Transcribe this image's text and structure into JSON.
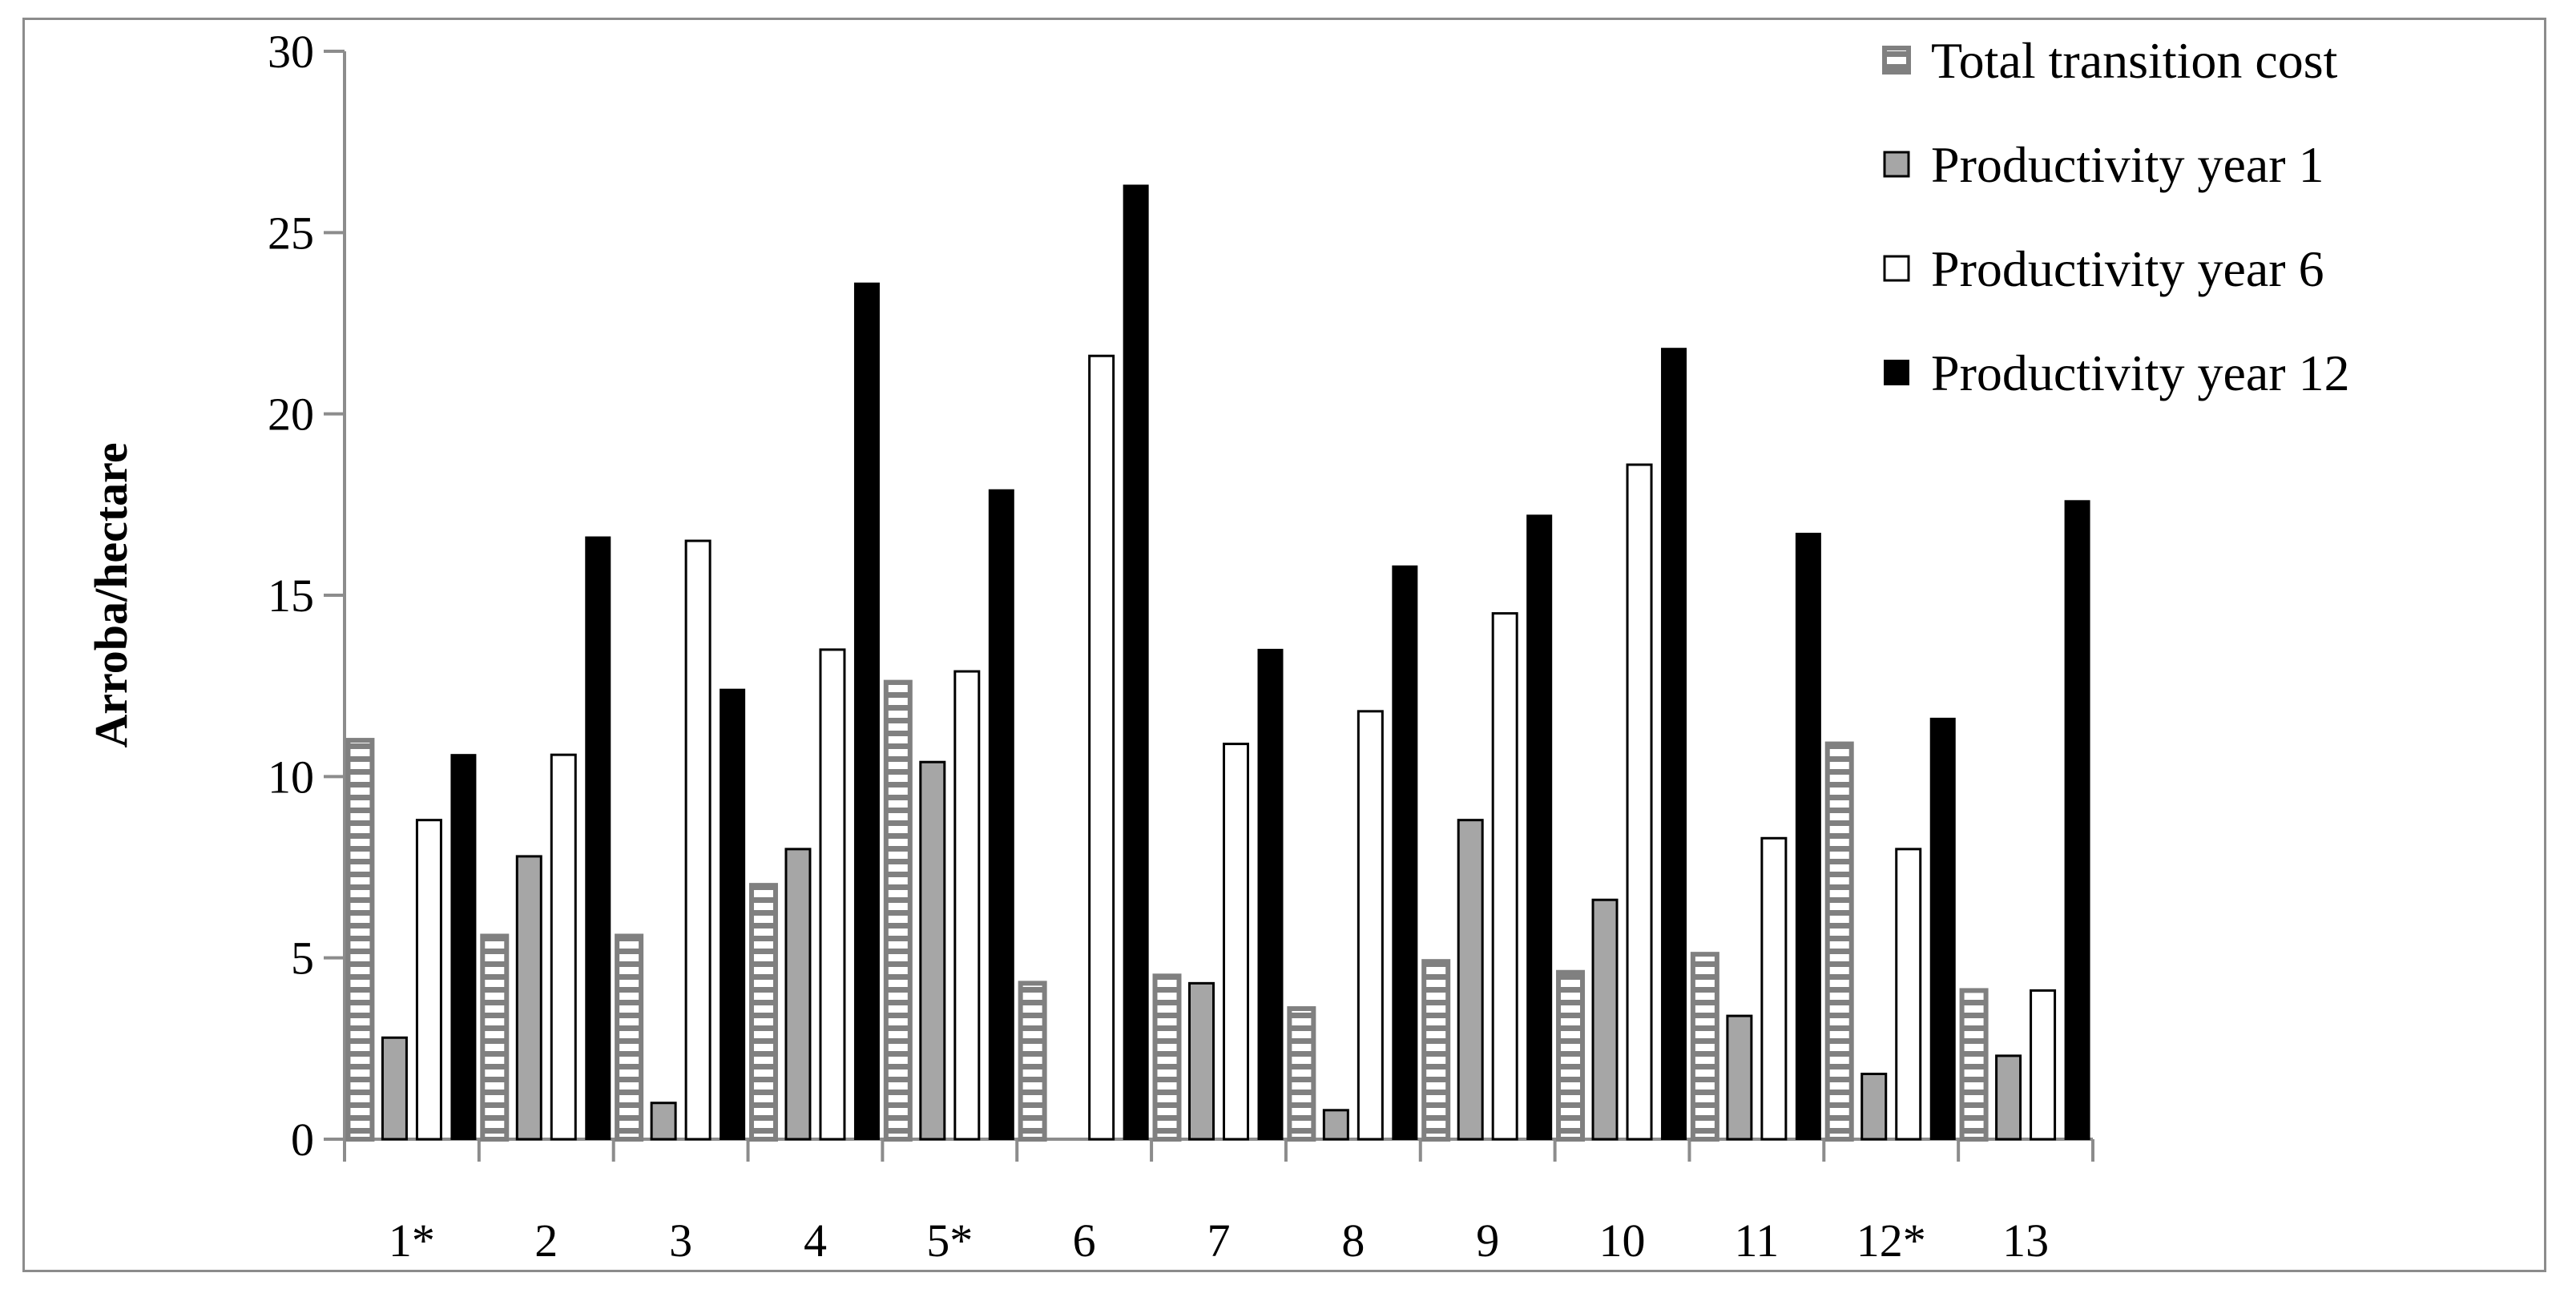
{
  "chart_data": {
    "type": "bar",
    "title": "",
    "xlabel": "",
    "ylabel": "Arroba/hectare",
    "ylim": [
      0,
      30
    ],
    "yticks": [
      0,
      5,
      10,
      15,
      20,
      25,
      30
    ],
    "grid": false,
    "legend_position": "top-right",
    "categories": [
      "1*",
      "2",
      "3",
      "4",
      "5*",
      "6",
      "7",
      "8",
      "9",
      "10",
      "11",
      "12*",
      "13"
    ],
    "series": [
      {
        "name": "Total transition cost",
        "style": "hatched",
        "color": "#808080",
        "values": [
          11.0,
          5.6,
          5.6,
          7.0,
          12.6,
          4.3,
          4.5,
          3.6,
          4.9,
          4.6,
          5.1,
          10.9,
          4.1
        ]
      },
      {
        "name": "Productivity year 1",
        "style": "gray",
        "color": "#a6a6a6",
        "values": [
          2.8,
          7.8,
          1.0,
          8.0,
          10.4,
          0,
          4.3,
          0.8,
          8.8,
          6.6,
          3.4,
          1.8,
          2.3
        ]
      },
      {
        "name": "Productivity year 6",
        "style": "white",
        "color": "#ffffff",
        "values": [
          8.8,
          10.6,
          16.5,
          13.5,
          12.9,
          21.6,
          10.9,
          11.8,
          14.5,
          18.6,
          8.3,
          8.0,
          4.1
        ]
      },
      {
        "name": "Productivity year 12",
        "style": "black",
        "color": "#000000",
        "values": [
          10.6,
          16.6,
          12.4,
          23.6,
          17.9,
          26.3,
          13.5,
          15.8,
          17.2,
          21.8,
          16.7,
          11.6,
          17.6
        ]
      }
    ]
  }
}
